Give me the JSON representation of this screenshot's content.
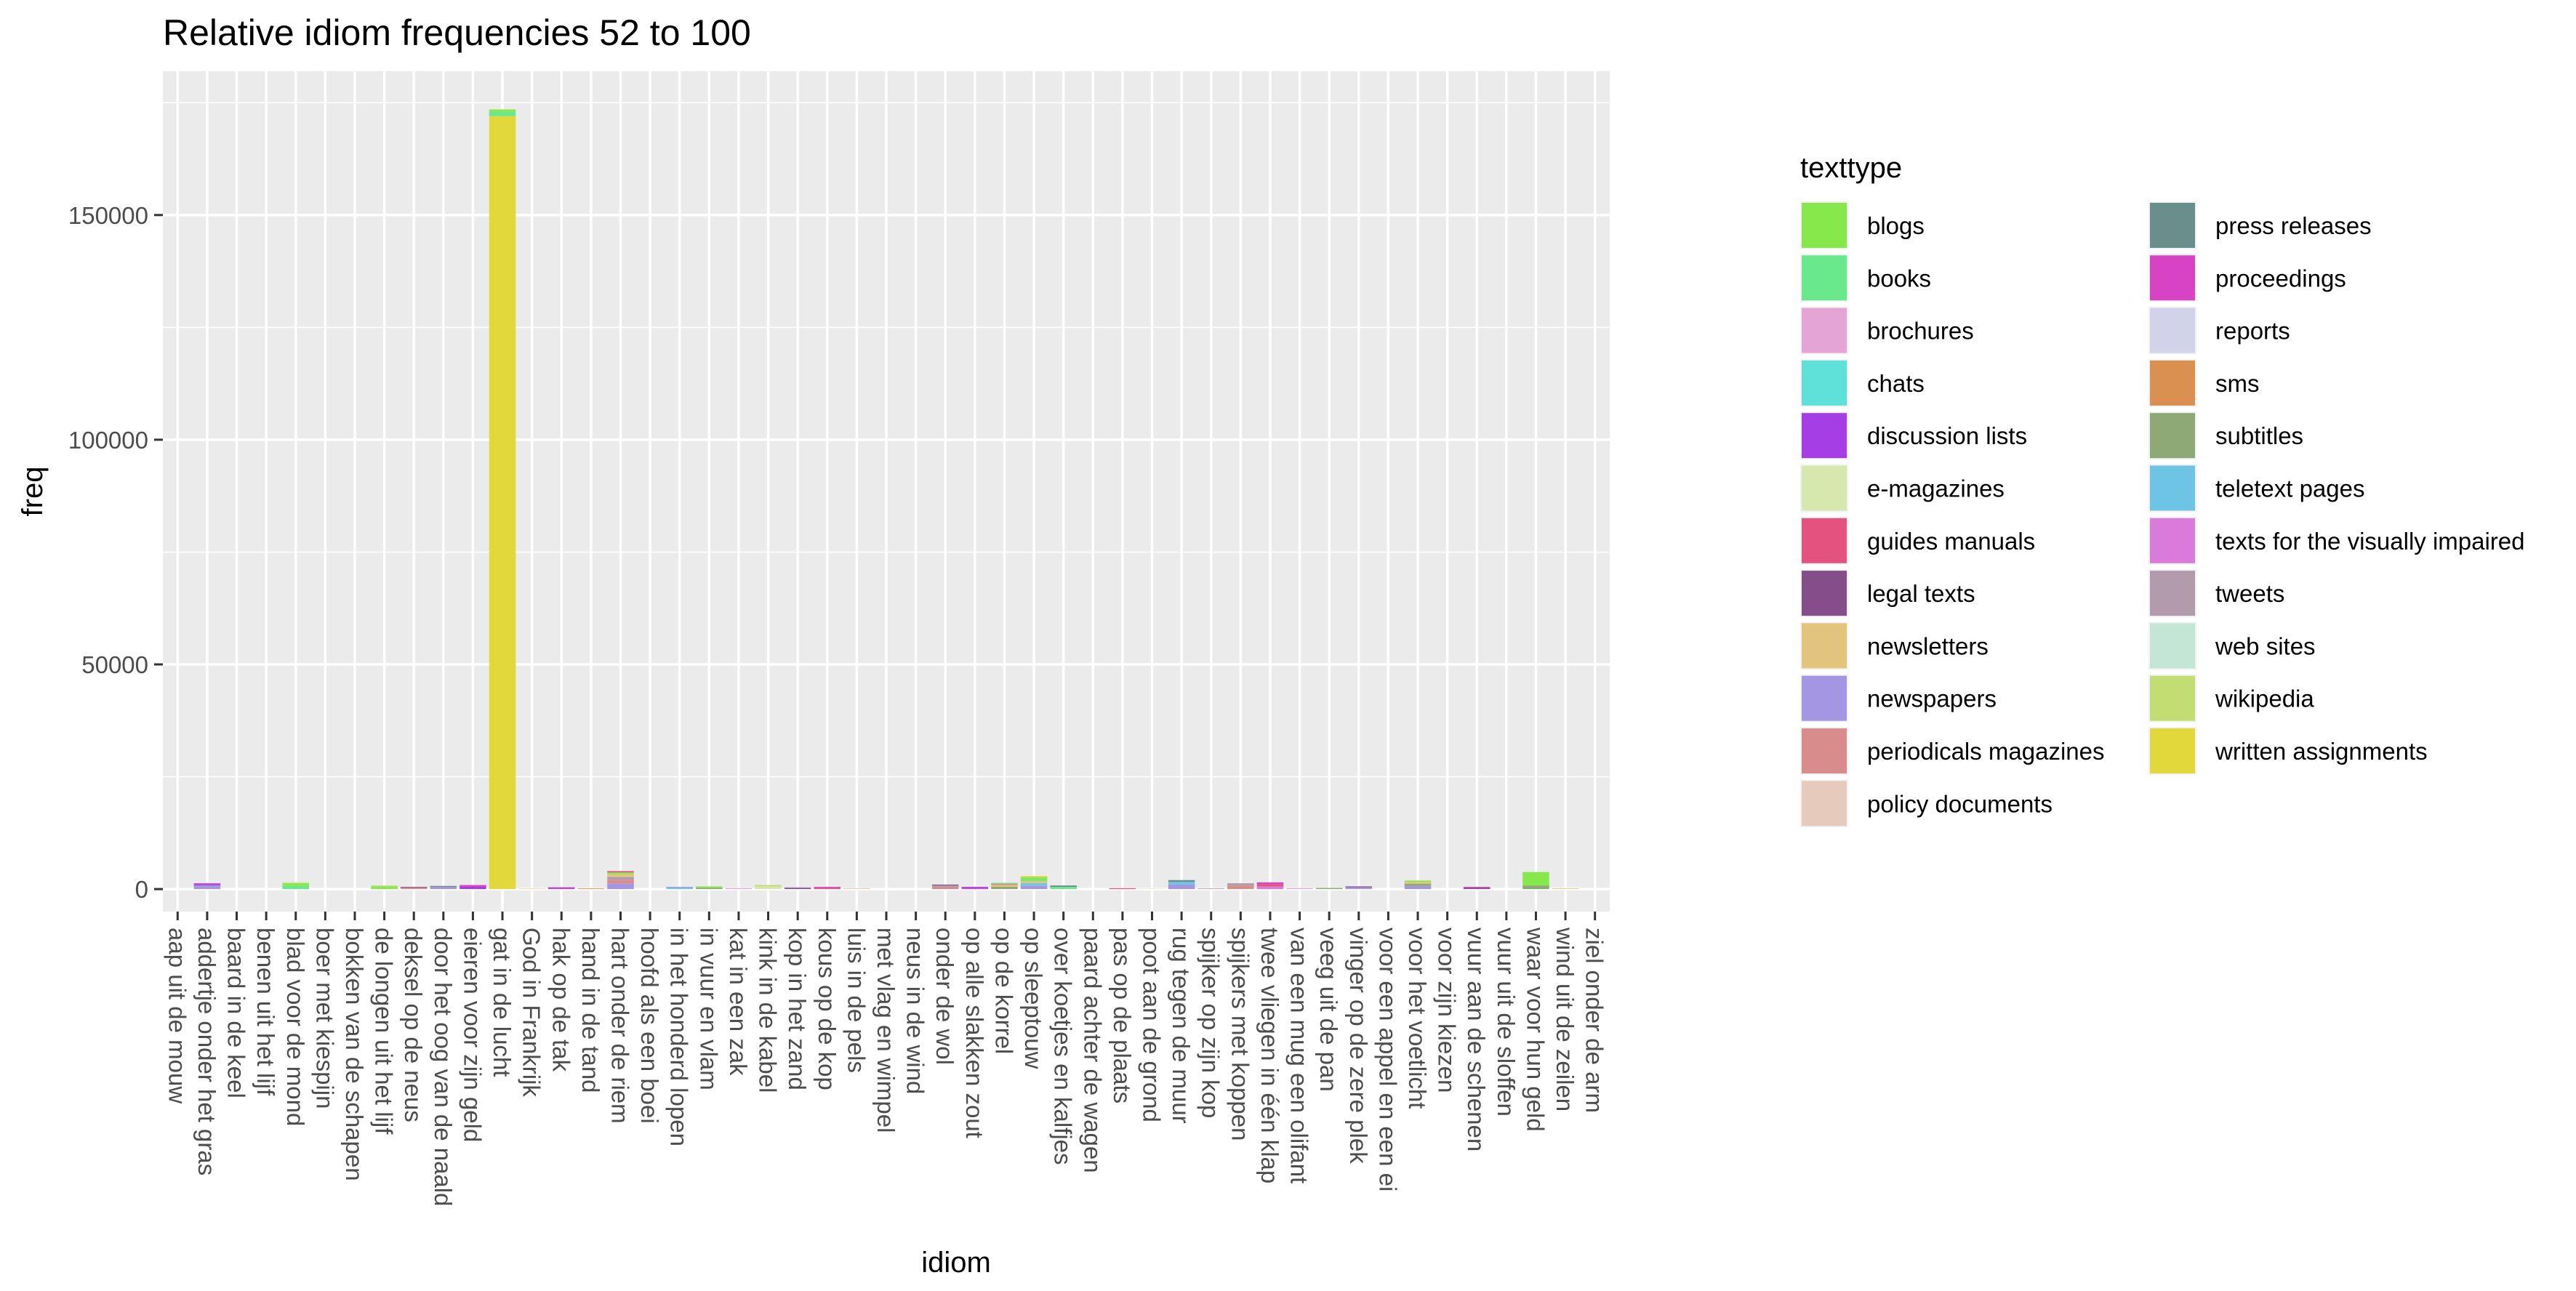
{
  "chart_data": {
    "type": "bar",
    "stacked": true,
    "title": "Relative idiom frequencies 52 to 100",
    "xlabel": "idiom",
    "ylabel": "freq",
    "ylim": [
      -5000,
      182000
    ],
    "yticks": [
      0,
      50000,
      100000,
      150000
    ],
    "ytick_labels": [
      "0",
      "50000",
      "100000",
      "150000"
    ],
    "grid": true,
    "legend_position": "right",
    "legend_title": "texttype",
    "categories": [
      "aap uit de mouw",
      "addertje onder het gras",
      "baard in de keel",
      "benen uit het lijf",
      "blad voor de mond",
      "boer met kiespijn",
      "bokken van de schapen",
      "de longen uit het lijf",
      "deksel op de neus",
      "door het oog van de naald",
      "eieren voor zijn geld",
      "gat in de lucht",
      "God in Frankrijk",
      "hak op de tak",
      "hand in de tand",
      "hart onder de riem",
      "hoofd als een boei",
      "in het honderd lopen",
      "in vuur en vlam",
      "kat in een zak",
      "kink in de kabel",
      "kop in het zand",
      "kous op de kop",
      "luis in de pels",
      "met vlag en wimpel",
      "neus in de wind",
      "onder de wol",
      "op alle slakken zout",
      "op de korrel",
      "op sleeptouw",
      "over koetjes en kalfjes",
      "paard achter de wagen",
      "pas op de plaats",
      "poot aan de grond",
      "rug tegen de muur",
      "spijker op zijn kop",
      "spijkers met koppen",
      "twee vliegen in één klap",
      "van een mug een olifant",
      "veeg uit de pan",
      "vinger op de zere plek",
      "voor een appel en een ei",
      "voor het voetlicht",
      "voor zijn kiezen",
      "vuur aan de schenen",
      "vuur uit de sloffen",
      "waar voor hun geld",
      "wind uit de zeilen",
      "ziel onder de arm"
    ],
    "legend": [
      {
        "name": "blogs",
        "color": "#86E84A"
      },
      {
        "name": "books",
        "color": "#6AE88C"
      },
      {
        "name": "brochures",
        "color": "#E4A4D6"
      },
      {
        "name": "chats",
        "color": "#5FE0D8"
      },
      {
        "name": "discussion lists",
        "color": "#A63EE6"
      },
      {
        "name": "e-magazines",
        "color": "#D6E8AE"
      },
      {
        "name": "guides manuals",
        "color": "#E4537F"
      },
      {
        "name": "legal texts",
        "color": "#834E8A"
      },
      {
        "name": "newsletters",
        "color": "#E2C47C"
      },
      {
        "name": "newspapers",
        "color": "#A496E2"
      },
      {
        "name": "periodicals magazines",
        "color": "#D98C8C"
      },
      {
        "name": "policy documents",
        "color": "#E6CABB"
      },
      {
        "name": "press releases",
        "color": "#6A8E8C"
      },
      {
        "name": "proceedings",
        "color": "#D842C4"
      },
      {
        "name": "reports",
        "color": "#D2D2EA"
      },
      {
        "name": "sms",
        "color": "#D99050"
      },
      {
        "name": "subtitles",
        "color": "#8EA876"
      },
      {
        "name": "teletext pages",
        "color": "#6EC4E4"
      },
      {
        "name": "texts for the visually impaired",
        "color": "#DA7ADA"
      },
      {
        "name": "tweets",
        "color": "#B29CAC"
      },
      {
        "name": "web sites",
        "color": "#C4E6D6"
      },
      {
        "name": "wikipedia",
        "color": "#C2DE72"
      },
      {
        "name": "written assignments",
        "color": "#E2D83C"
      }
    ],
    "stacks": [
      [],
      [
        {
          "texttype": "newspapers",
          "value": 800
        },
        {
          "texttype": "discussion lists",
          "value": 300
        },
        {
          "texttype": "proceedings",
          "value": 200
        }
      ],
      [],
      [],
      [
        {
          "texttype": "books",
          "value": 700
        },
        {
          "texttype": "blogs",
          "value": 600
        },
        {
          "texttype": "e-magazines",
          "value": 300
        }
      ],
      [],
      [],
      [
        {
          "texttype": "blogs",
          "value": 600
        },
        {
          "texttype": "wikipedia",
          "value": 200
        }
      ],
      [
        {
          "texttype": "periodicals magazines",
          "value": 350
        },
        {
          "texttype": "legal texts",
          "value": 150
        }
      ],
      [
        {
          "texttype": "newspapers",
          "value": 500
        },
        {
          "texttype": "press releases",
          "value": 200
        }
      ],
      [
        {
          "texttype": "discussion lists",
          "value": 500
        },
        {
          "texttype": "proceedings",
          "value": 400
        }
      ],
      [
        {
          "texttype": "written assignments",
          "value": 172000
        },
        {
          "texttype": "books",
          "value": 1000
        },
        {
          "texttype": "blogs",
          "value": 500
        }
      ],
      [
        {
          "texttype": "newsletters",
          "value": 100
        }
      ],
      [
        {
          "texttype": "proceedings",
          "value": 250
        },
        {
          "texttype": "discussion lists",
          "value": 150
        }
      ],
      [
        {
          "texttype": "sms",
          "value": 150
        }
      ],
      [
        {
          "texttype": "newspapers",
          "value": 1200
        },
        {
          "texttype": "periodicals magazines",
          "value": 800
        },
        {
          "texttype": "tweets",
          "value": 700
        },
        {
          "texttype": "newsletters",
          "value": 600
        },
        {
          "texttype": "blogs",
          "value": 400
        },
        {
          "texttype": "guides manuals",
          "value": 300
        }
      ],
      [],
      [
        {
          "texttype": "teletext pages",
          "value": 300
        },
        {
          "texttype": "newspapers",
          "value": 200
        }
      ],
      [
        {
          "texttype": "subtitles",
          "value": 300
        },
        {
          "texttype": "blogs",
          "value": 300
        }
      ],
      [
        {
          "texttype": "brochures",
          "value": 200
        }
      ],
      [
        {
          "texttype": "e-magazines",
          "value": 600
        },
        {
          "texttype": "wikipedia",
          "value": 300
        }
      ],
      [
        {
          "texttype": "legal texts",
          "value": 300
        },
        {
          "texttype": "reports",
          "value": 200
        }
      ],
      [
        {
          "texttype": "guides manuals",
          "value": 300
        },
        {
          "texttype": "proceedings",
          "value": 200
        }
      ],
      [
        {
          "texttype": "policy documents",
          "value": 200
        }
      ],
      [],
      [],
      [
        {
          "texttype": "periodicals magazines",
          "value": 500
        },
        {
          "texttype": "tweets",
          "value": 300
        },
        {
          "texttype": "legal texts",
          "value": 200
        }
      ],
      [
        {
          "texttype": "proceedings",
          "value": 300
        },
        {
          "texttype": "discussion lists",
          "value": 200
        }
      ],
      [
        {
          "texttype": "subtitles",
          "value": 500
        },
        {
          "texttype": "newsletters",
          "value": 400
        },
        {
          "texttype": "periodicals magazines",
          "value": 300
        },
        {
          "texttype": "books",
          "value": 200
        }
      ],
      [
        {
          "texttype": "newspapers",
          "value": 700
        },
        {
          "texttype": "teletext pages",
          "value": 600
        },
        {
          "texttype": "newsletters",
          "value": 500
        },
        {
          "texttype": "books",
          "value": 400
        },
        {
          "texttype": "blogs",
          "value": 400
        },
        {
          "texttype": "written assignments",
          "value": 300
        }
      ],
      [
        {
          "texttype": "books",
          "value": 500
        },
        {
          "texttype": "press releases",
          "value": 300
        }
      ],
      [],
      [
        {
          "texttype": "guides manuals",
          "value": 200
        }
      ],
      [
        {
          "texttype": "e-magazines",
          "value": 100
        }
      ],
      [
        {
          "texttype": "newspapers",
          "value": 1000
        },
        {
          "texttype": "teletext pages",
          "value": 600
        },
        {
          "texttype": "press releases",
          "value": 400
        }
      ],
      [
        {
          "texttype": "tweets",
          "value": 150
        }
      ],
      [
        {
          "texttype": "periodicals magazines",
          "value": 800
        },
        {
          "texttype": "tweets",
          "value": 500
        }
      ],
      [
        {
          "texttype": "texts for the visually impaired",
          "value": 600
        },
        {
          "texttype": "guides manuals",
          "value": 500
        },
        {
          "texttype": "proceedings",
          "value": 400
        }
      ],
      [
        {
          "texttype": "brochures",
          "value": 200
        }
      ],
      [
        {
          "texttype": "subtitles",
          "value": 250
        }
      ],
      [
        {
          "texttype": "newspapers",
          "value": 400
        },
        {
          "texttype": "legal texts",
          "value": 200
        }
      ],
      [],
      [
        {
          "texttype": "newspapers",
          "value": 700
        },
        {
          "texttype": "subtitles",
          "value": 500
        },
        {
          "texttype": "newsletters",
          "value": 400
        },
        {
          "texttype": "blogs",
          "value": 300
        }
      ],
      [],
      [
        {
          "texttype": "legal texts",
          "value": 300
        },
        {
          "texttype": "proceedings",
          "value": 200
        }
      ],
      [],
      [
        {
          "texttype": "subtitles",
          "value": 800
        },
        {
          "texttype": "blogs",
          "value": 3000
        }
      ],
      [
        {
          "texttype": "newsletters",
          "value": 150
        }
      ],
      []
    ]
  }
}
